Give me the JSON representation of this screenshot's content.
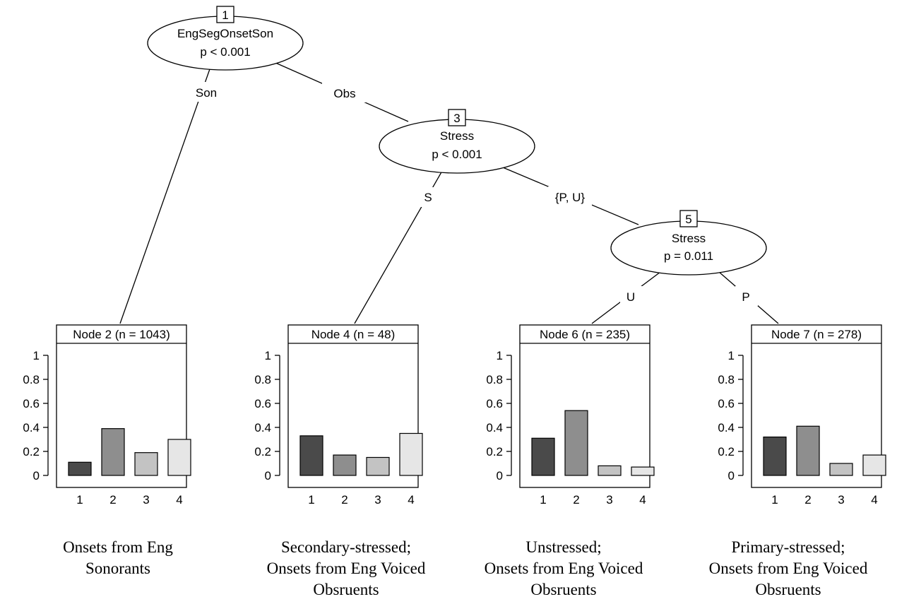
{
  "inner_nodes": [
    {
      "id": "1",
      "variable": "EngSegOnsetSon",
      "p": "p < 0.001"
    },
    {
      "id": "3",
      "variable": "Stress",
      "p": "p < 0.001"
    },
    {
      "id": "5",
      "variable": "Stress",
      "p": "p = 0.011"
    }
  ],
  "edge_labels": [
    "Son",
    "Obs",
    "S",
    "{P, U}",
    "U",
    "P"
  ],
  "chart_data": [
    {
      "type": "bar",
      "title": "Node 2 (n = 1043)",
      "categories": [
        "1",
        "2",
        "3",
        "4"
      ],
      "values": [
        0.11,
        0.39,
        0.19,
        0.3
      ],
      "ylim": [
        0,
        1
      ],
      "yticks": [
        "1",
        "0.8",
        "0.6",
        "0.4",
        "0.2",
        "0"
      ],
      "caption": [
        "Onsets from Eng",
        "Sonorants"
      ]
    },
    {
      "type": "bar",
      "title": "Node 4 (n = 48)",
      "categories": [
        "1",
        "2",
        "3",
        "4"
      ],
      "values": [
        0.33,
        0.17,
        0.15,
        0.35
      ],
      "ylim": [
        0,
        1
      ],
      "yticks": [
        "1",
        "0.8",
        "0.6",
        "0.4",
        "0.2",
        "0"
      ],
      "caption": [
        "Secondary-stressed;",
        "Onsets from Eng Voiced",
        "Obsruents"
      ]
    },
    {
      "type": "bar",
      "title": "Node 6 (n = 235)",
      "categories": [
        "1",
        "2",
        "3",
        "4"
      ],
      "values": [
        0.31,
        0.54,
        0.08,
        0.07
      ],
      "ylim": [
        0,
        1
      ],
      "yticks": [
        "1",
        "0.8",
        "0.6",
        "0.4",
        "0.2",
        "0"
      ],
      "caption": [
        "Unstressed;",
        "Onsets from Eng Voiced",
        "Obsruents"
      ]
    },
    {
      "type": "bar",
      "title": "Node 7 (n = 278)",
      "categories": [
        "1",
        "2",
        "3",
        "4"
      ],
      "values": [
        0.32,
        0.41,
        0.1,
        0.17
      ],
      "ylim": [
        0,
        1
      ],
      "yticks": [
        "1",
        "0.8",
        "0.6",
        "0.4",
        "0.2",
        "0"
      ],
      "caption": [
        "Primary-stressed;",
        "Onsets from Eng Voiced",
        "Obsruents"
      ]
    }
  ],
  "bar_colors": [
    "#4a4a4a",
    "#8e8e8e",
    "#c3c3c3",
    "#e6e6e6"
  ]
}
